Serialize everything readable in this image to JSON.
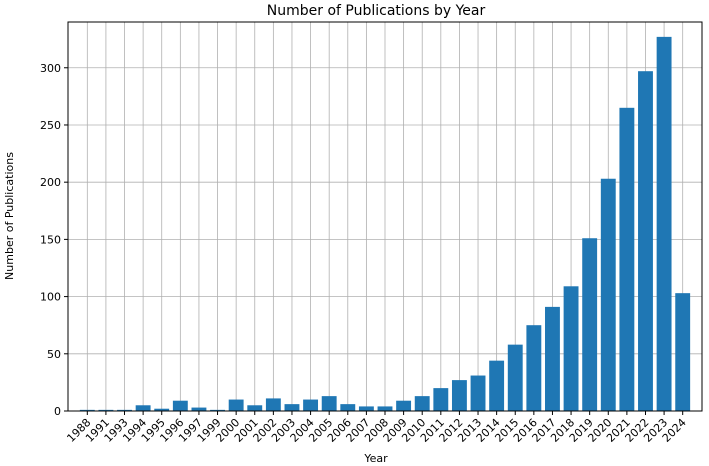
{
  "chart_data": {
    "type": "bar",
    "title": "Number of Publications by Year",
    "xlabel": "Year",
    "ylabel": "Number of Publications",
    "categories": [
      "1988",
      "1991",
      "1993",
      "1994",
      "1995",
      "1996",
      "1997",
      "1999",
      "2000",
      "2001",
      "2002",
      "2003",
      "2004",
      "2005",
      "2006",
      "2007",
      "2008",
      "2009",
      "2010",
      "2011",
      "2012",
      "2013",
      "2014",
      "2015",
      "2016",
      "2017",
      "2018",
      "2019",
      "2020",
      "2021",
      "2022",
      "2023",
      "2024"
    ],
    "values": [
      1,
      1,
      1,
      5,
      2,
      9,
      3,
      1,
      10,
      5,
      11,
      6,
      10,
      13,
      6,
      4,
      4,
      9,
      13,
      20,
      27,
      31,
      44,
      58,
      75,
      91,
      109,
      151,
      203,
      265,
      297,
      327,
      103
    ],
    "ylim": [
      0,
      340
    ],
    "yticks": [
      0,
      50,
      100,
      150,
      200,
      250,
      300
    ],
    "grid": true,
    "bar_color": "#1f77b4"
  }
}
